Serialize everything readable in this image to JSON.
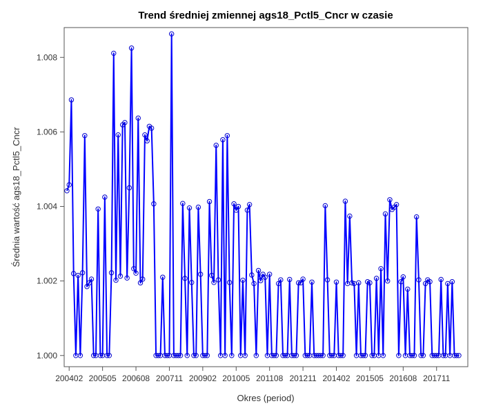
{
  "chart_data": {
    "type": "line",
    "title": "Trend średniej zmiennej ags18_Pctl5_Cncr w czasie",
    "xlabel": "Okres (period)",
    "ylabel": "Średnia wartość ags18_Pctl5_Cncr",
    "x_ticks": [
      "200402",
      "200505",
      "200608",
      "200711",
      "200902",
      "201005",
      "201108",
      "201211",
      "201402",
      "201505",
      "201608",
      "201711"
    ],
    "y_ticks": [
      "1.000",
      "1.002",
      "1.004",
      "1.006",
      "1.008"
    ],
    "ylim": [
      0.9997,
      1.0088
    ],
    "x_start": "2004-01",
    "grid": false,
    "legend": "none",
    "colors": {
      "line": "#0000ff",
      "marker": "#0000cc"
    },
    "series": [
      {
        "values": [
          1.00442,
          1.00458,
          1.00686,
          1.0022,
          1.0,
          1.00215,
          1.0,
          1.00222,
          1.0059,
          1.00185,
          1.00195,
          1.00205,
          1.0,
          1.0,
          1.00393,
          1.0,
          1.0,
          1.00425,
          1.0,
          1.0,
          1.00222,
          1.00811,
          1.00202,
          1.00592,
          1.00213,
          1.00619,
          1.00625,
          1.00208,
          1.0045,
          1.00825,
          1.00233,
          1.00221,
          1.00637,
          1.00195,
          1.00205,
          1.00592,
          1.00576,
          1.00615,
          1.0061,
          1.00407,
          1.0,
          1.0,
          1.0,
          1.0021,
          1.0,
          1.0,
          1.0,
          1.00863,
          1.0,
          1.0,
          1.0,
          1.0,
          1.00408,
          1.00207,
          1.0,
          1.00396,
          1.00196,
          1.0,
          1.0,
          1.00398,
          1.00218,
          1.0,
          1.0,
          1.0,
          1.00413,
          1.00215,
          1.00196,
          1.00564,
          1.00203,
          1.0,
          1.00579,
          1.0,
          1.0059,
          1.00196,
          1.0,
          1.00407,
          1.0039,
          1.004,
          1.0,
          1.00202,
          1.0,
          1.0039,
          1.00405,
          1.00216,
          1.00193,
          1.0,
          1.00228,
          1.00201,
          1.00218,
          1.0021,
          1.0,
          1.00218,
          1.0,
          1.0,
          1.0,
          1.00193,
          1.00203,
          1.0,
          1.0,
          1.0,
          1.00204,
          1.0,
          1.0,
          1.0,
          1.00195,
          1.00195,
          1.00205,
          1.0,
          1.0,
          1.0,
          1.00197,
          1.0,
          1.0,
          1.0,
          1.0,
          1.0,
          1.00402,
          1.00203,
          1.0,
          1.0,
          1.0,
          1.00197,
          1.0,
          1.0,
          1.0,
          1.00414,
          1.00193,
          1.00374,
          1.00195,
          1.00193,
          1.0,
          1.00195,
          1.0,
          1.0,
          1.0,
          1.00198,
          1.00195,
          1.0,
          1.0,
          1.00207,
          1.0,
          1.00233,
          1.0,
          1.0038,
          1.002,
          1.00418,
          1.00392,
          1.00398,
          1.00405,
          1.0,
          1.00198,
          1.00211,
          1.0,
          1.00178,
          1.0,
          1.0,
          1.0,
          1.00372,
          1.00203,
          1.0,
          1.0,
          1.00193,
          1.00203,
          1.00198,
          1.0,
          1.0,
          1.0,
          1.0,
          1.00204,
          1.0,
          1.0,
          1.00193,
          1.0,
          1.00198,
          1.0,
          1.0,
          1.0
        ]
      }
    ]
  }
}
